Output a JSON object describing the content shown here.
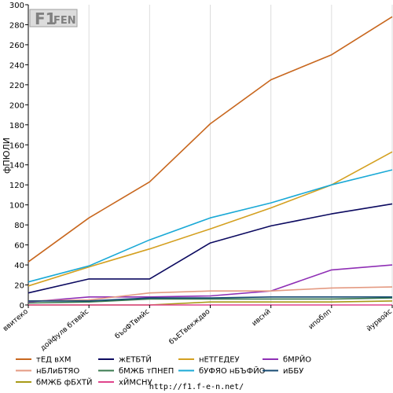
{
  "chart_data": {
    "type": "line",
    "title": "",
    "xlabel": "",
    "ylabel": "фПЮЛИ",
    "ylim": [
      0,
      300
    ],
    "yticks": [
      0,
      20,
      40,
      60,
      80,
      100,
      120,
      140,
      160,
      180,
      200,
      220,
      240,
      260,
      280,
      300
    ],
    "grid": "vertical",
    "legend_position": "bottom",
    "categories": [
      "ввитеко",
      "дойфулв бтввйс",
      "бъоФТвмйс",
      "бъЕТвекждво",
      "ивснй",
      "ипоблп",
      "йурвойс"
    ],
    "series": [
      {
        "name": "тЕД вХМ",
        "color": "#c8671e",
        "values": [
          43,
          87,
          123,
          181,
          225,
          250,
          288
        ]
      },
      {
        "name": "жЕТБТЙ",
        "color": "#0c0a60",
        "values": [
          12,
          26,
          26,
          62,
          79,
          91,
          101
        ]
      },
      {
        "name": "нЕТГЕДЕУ",
        "color": "#d4a020",
        "values": [
          19,
          38,
          56,
          76,
          97,
          120,
          153
        ]
      },
      {
        "name": "бМРЙО",
        "color": "#8f2fb5",
        "values": [
          3,
          8,
          8,
          9,
          14,
          35,
          40
        ]
      },
      {
        "name": "нБЛиБТЯО",
        "color": "#e49a82",
        "values": [
          4,
          5,
          12,
          14,
          14,
          17,
          18
        ]
      },
      {
        "name": "бМЖБ тПНЕП",
        "color": "#3a7a4f",
        "values": [
          2,
          3,
          6,
          6,
          6,
          6,
          7
        ]
      },
      {
        "name": "бУФЯО нБЪФЙО",
        "color": "#1aa9d6",
        "values": [
          23,
          39,
          65,
          87,
          102,
          120,
          135
        ]
      },
      {
        "name": "иББУ",
        "color": "#154a72",
        "values": [
          4,
          4,
          7,
          7,
          8,
          8,
          8
        ]
      },
      {
        "name": "бМЖБ фБХТЙ",
        "color": "#a89a18",
        "values": [
          0,
          0,
          0,
          3,
          3,
          3,
          4
        ]
      },
      {
        "name": "хЙМСНУ",
        "color": "#e0448c",
        "values": [
          0,
          0,
          0,
          0,
          0,
          0,
          0
        ]
      }
    ]
  },
  "footer": {
    "url": "http://f1.f-e-n.net/"
  },
  "logo": {
    "main": "F1",
    "sub": "FEN"
  }
}
